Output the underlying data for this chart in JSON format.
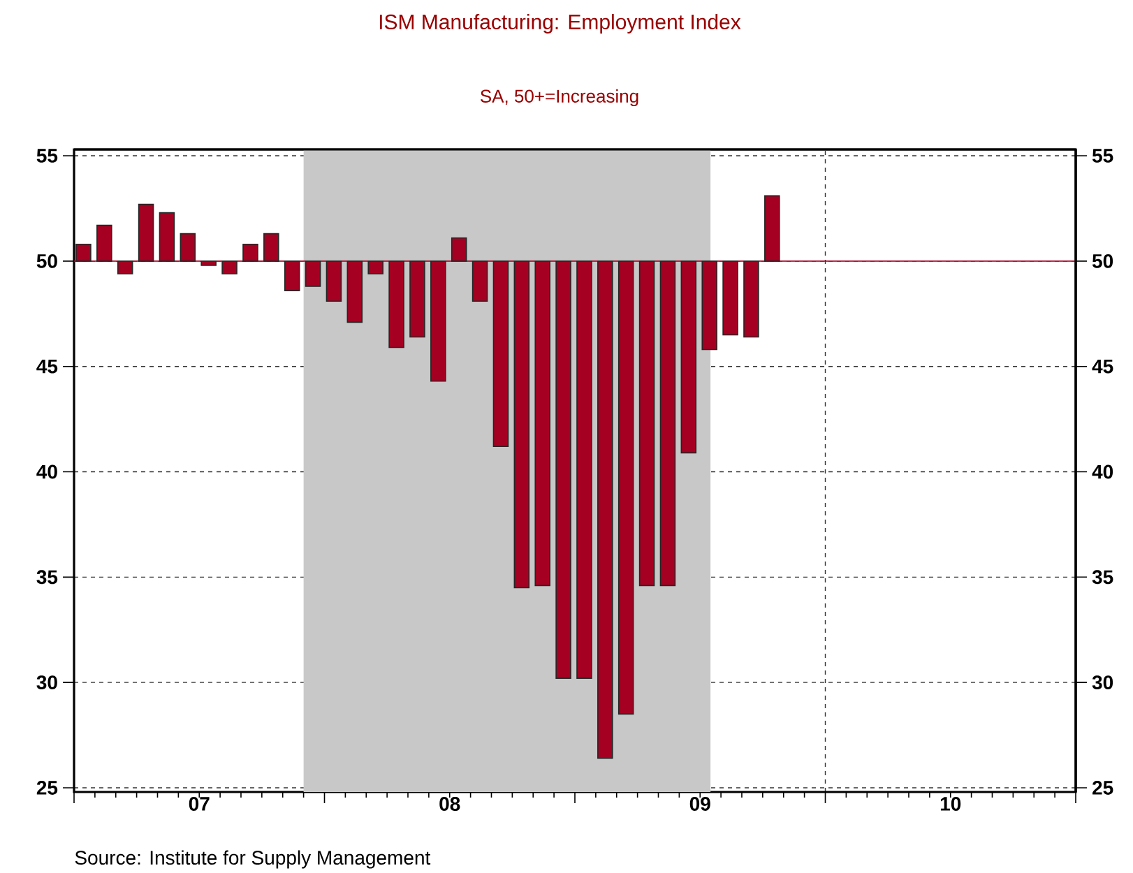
{
  "chart_data": {
    "type": "bar",
    "title": "ISM Manufacturing: Employment Index",
    "subtitle": "SA, 50+=Increasing",
    "x": [
      "2007-01-15",
      "2007-02-15",
      "2007-03-15",
      "2007-04-15",
      "2007-05-15",
      "2007-06-15",
      "2007-07-15",
      "2007-08-15",
      "2007-09-15",
      "2007-10-15",
      "2007-11-15",
      "2007-12-15",
      "2008-01-15",
      "2008-02-15",
      "2008-03-15",
      "2008-04-15",
      "2008-05-15",
      "2008-06-15",
      "2008-07-15",
      "2008-08-15",
      "2008-09-15",
      "2008-10-15",
      "2008-11-15",
      "2008-12-15",
      "2009-01-15",
      "2009-02-15",
      "2009-03-15",
      "2009-04-15",
      "2009-05-15",
      "2009-06-15",
      "2009-07-15",
      "2009-08-15",
      "2009-09-15",
      "2009-10-15"
    ],
    "base": [
      50,
      50,
      50,
      50,
      50,
      50,
      50,
      50,
      50,
      50,
      50,
      50,
      50,
      50,
      50,
      50,
      50,
      50,
      50,
      50,
      50,
      50,
      50,
      50,
      50,
      50,
      50,
      50,
      50,
      50,
      50,
      50,
      50,
      50
    ],
    "values": [
      0.8,
      1.7,
      -0.6,
      2.7,
      2.3,
      1.3,
      -0.2,
      -0.6,
      0.8,
      1.3,
      -1.4,
      -1.2,
      -1.9,
      -2.9,
      -0.6,
      -4.1,
      -3.6,
      -5.7,
      1.1,
      -1.9,
      -8.8,
      -15.5,
      -15.4,
      -19.8,
      -19.8,
      -23.6,
      -21.5,
      -15.4,
      -15.4,
      -9.1,
      -4.2,
      -3.5,
      -3.6,
      3.1
    ],
    "color": "#a50021",
    "xlim": [
      "2007-01",
      "2011-01"
    ],
    "xticks": [
      {
        "value": "2007-01",
        "label": null
      },
      {
        "value": "2008-01",
        "label": null
      },
      {
        "value": "2009-01",
        "label": null
      },
      {
        "value": "2010-01",
        "label": null
      },
      {
        "value": "2011-01",
        "label": null
      },
      {
        "value": "2007-07",
        "label": "07"
      },
      {
        "value": "2008-07",
        "label": "08"
      },
      {
        "value": "2009-07",
        "label": "09"
      },
      {
        "value": "2010-07",
        "label": "10"
      }
    ],
    "ylim": [
      24.8,
      55.3
    ],
    "yticks": [
      25,
      30,
      35,
      40,
      45,
      50,
      55
    ],
    "y2lim": [
      24.8,
      55.3
    ],
    "y2ticks": [
      25,
      30,
      35,
      40,
      45,
      50,
      55
    ],
    "grid": true,
    "ref_lines": [
      {
        "axis": "y",
        "value": 50,
        "color": "#a50021"
      }
    ],
    "bands": [
      {
        "axis": "x",
        "from": "2007-12",
        "to": "2009-07-15",
        "color": "#c8c8c8"
      }
    ],
    "annotations": [
      "Source:  Institute for Supply Management"
    ]
  }
}
